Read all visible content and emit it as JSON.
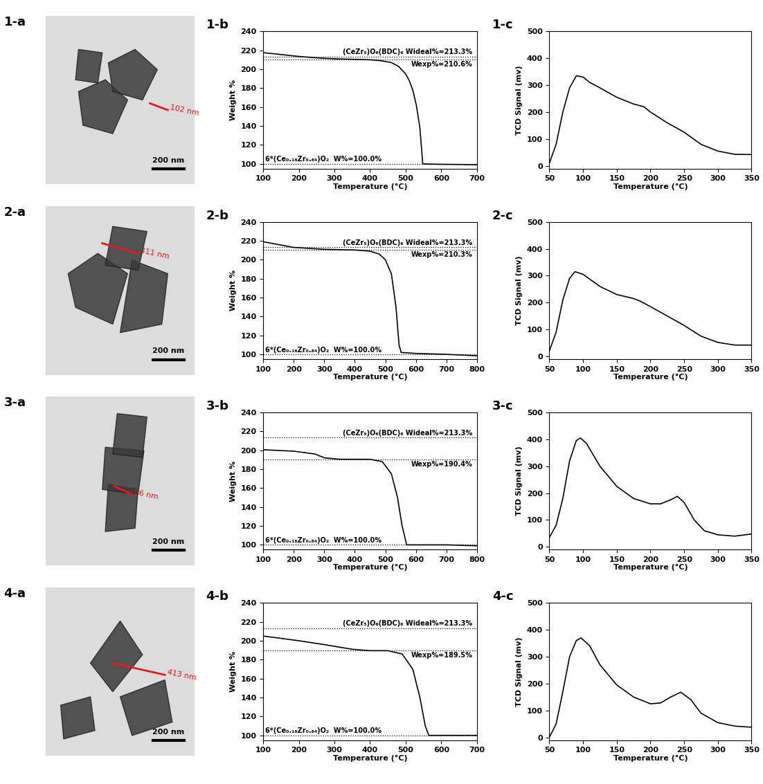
{
  "chart_data": [
    {
      "type": "image",
      "title": "1-a",
      "annotations": [
        "102 nm",
        "200 nm"
      ],
      "tick_labels": false,
      "color": "#e31a1c"
    },
    {
      "type": "line",
      "title": "1-b",
      "xlabel": "Temperature (°C)",
      "ylabel": "Weight %",
      "xlim": [
        100,
        700
      ],
      "xticks": [
        100,
        200,
        300,
        400,
        500,
        600,
        700
      ],
      "ylim": [
        95,
        240
      ],
      "yticks": [
        100,
        120,
        140,
        160,
        180,
        200,
        220,
        240
      ],
      "grid": false,
      "reference_lines": [
        {
          "value": 213.3,
          "label": "(CeZr₅)O₆(BDC)₆ Wideal%=213.3%"
        },
        {
          "value": 210.6,
          "label": "Wexp%=210.6%"
        },
        {
          "value": 100.0,
          "label": "6*(Ce₀.₁₆Zr₀.₈₄)O₂  W%=100.0%"
        }
      ],
      "series": [
        {
          "color": "#000000",
          "line_style": "solid",
          "x": [
            100,
            150,
            200,
            250,
            300,
            350,
            400,
            430,
            460,
            480,
            500,
            510,
            520,
            530,
            540,
            548,
            560,
            600,
            650,
            700
          ],
          "values": [
            217.5,
            215.5,
            213.5,
            212,
            211,
            210.5,
            210,
            209,
            207,
            203,
            195,
            188,
            178,
            162,
            138,
            100,
            99.8,
            99.5,
            99.3,
            99
          ]
        }
      ]
    },
    {
      "type": "line",
      "title": "1-c",
      "xlabel": "Temperature (°C)",
      "ylabel": "TCD Signal (mv)",
      "xlim": [
        50,
        350
      ],
      "xticks": [
        50,
        100,
        150,
        200,
        250,
        300,
        350
      ],
      "ylim": [
        -10,
        500
      ],
      "yticks": [
        0,
        100,
        200,
        300,
        400,
        500
      ],
      "grid": false,
      "series": [
        {
          "color": "#000000",
          "line_style": "solid",
          "x": [
            50,
            60,
            70,
            80,
            90,
            100,
            110,
            125,
            150,
            175,
            190,
            200,
            225,
            250,
            275,
            300,
            325,
            350
          ],
          "values": [
            10,
            80,
            200,
            290,
            335,
            330,
            310,
            290,
            255,
            230,
            220,
            200,
            160,
            125,
            80,
            55,
            43,
            42
          ]
        }
      ]
    },
    {
      "type": "image",
      "title": "2-a",
      "annotations": [
        "411 nm",
        "200 nm"
      ],
      "tick_labels": false,
      "color": "#e31a1c"
    },
    {
      "type": "line",
      "title": "2-b",
      "xlabel": "Temperature (°C)",
      "ylabel": "Weight %",
      "xlim": [
        100,
        800
      ],
      "xticks": [
        100,
        200,
        300,
        400,
        500,
        600,
        700,
        800
      ],
      "ylim": [
        95,
        240
      ],
      "yticks": [
        100,
        120,
        140,
        160,
        180,
        200,
        220,
        240
      ],
      "grid": false,
      "reference_lines": [
        {
          "value": 213.3,
          "label": "(CeZr₅)O₆(BDC)₆ Wideal%=213.3%"
        },
        {
          "value": 210.3,
          "label": "Wexp%=210.3%"
        },
        {
          "value": 100.0,
          "label": "6*(Ce₀.₁₆Zr₀.₈₄)O₂  W%=100.0%"
        }
      ],
      "series": [
        {
          "color": "#000000",
          "line_style": "solid",
          "x": [
            100,
            150,
            200,
            300,
            400,
            450,
            480,
            500,
            520,
            535,
            545,
            552,
            600,
            700,
            800
          ],
          "values": [
            219,
            216,
            213,
            211,
            210.3,
            209,
            206,
            200,
            185,
            150,
            110,
            102,
            101,
            100,
            98.5
          ]
        }
      ]
    },
    {
      "type": "line",
      "title": "2-c",
      "xlabel": "Temperature (°C)",
      "ylabel": "TCD Signal (mv)",
      "xlim": [
        50,
        350
      ],
      "xticks": [
        50,
        100,
        150,
        200,
        250,
        300,
        350
      ],
      "ylim": [
        -10,
        500
      ],
      "yticks": [
        0,
        100,
        200,
        300,
        400,
        500
      ],
      "grid": false,
      "series": [
        {
          "color": "#000000",
          "line_style": "solid",
          "x": [
            50,
            60,
            70,
            80,
            88,
            100,
            125,
            150,
            175,
            185,
            200,
            225,
            250,
            275,
            300,
            325,
            350
          ],
          "values": [
            20,
            90,
            210,
            290,
            315,
            305,
            260,
            230,
            215,
            205,
            185,
            150,
            115,
            75,
            52,
            42,
            42
          ]
        }
      ]
    },
    {
      "type": "image",
      "title": "3-a",
      "annotations": [
        "96 nm",
        "200 nm"
      ],
      "tick_labels": false,
      "color": "#e31a1c"
    },
    {
      "type": "line",
      "title": "3-b",
      "xlabel": "Temperature (°C)",
      "ylabel": "Weight %",
      "xlim": [
        100,
        800
      ],
      "xticks": [
        100,
        200,
        300,
        400,
        500,
        600,
        700,
        800
      ],
      "ylim": [
        95,
        240
      ],
      "yticks": [
        100,
        120,
        140,
        160,
        180,
        200,
        220,
        240
      ],
      "grid": false,
      "reference_lines": [
        {
          "value": 213.3,
          "label": "(CeZr₅)O₆(BDC)₆ Wideal%=213.3%"
        },
        {
          "value": 190.4,
          "label": "Wexp%=190.4%"
        },
        {
          "value": 100.0,
          "label": "6*(Ce₀.₁₆Zr₀.₈₄)O₂  W%=100.0%"
        }
      ],
      "series": [
        {
          "color": "#000000",
          "line_style": "solid",
          "x": [
            100,
            200,
            270,
            300,
            350,
            450,
            490,
            520,
            540,
            555,
            570,
            700,
            800
          ],
          "values": [
            200.5,
            199,
            196,
            192,
            190.5,
            190.4,
            188,
            175,
            150,
            120,
            100,
            100,
            99
          ]
        }
      ]
    },
    {
      "type": "line",
      "title": "3-c",
      "xlabel": "Temperature (°C)",
      "ylabel": "TCD Signal (mv)",
      "xlim": [
        50,
        350
      ],
      "xticks": [
        50,
        100,
        150,
        200,
        250,
        300,
        350
      ],
      "ylim": [
        -10,
        500
      ],
      "yticks": [
        0,
        100,
        200,
        300,
        400,
        500
      ],
      "grid": false,
      "series": [
        {
          "color": "#000000",
          "line_style": "solid",
          "x": [
            50,
            60,
            70,
            80,
            90,
            96,
            105,
            125,
            150,
            175,
            200,
            215,
            230,
            240,
            250,
            265,
            280,
            300,
            325,
            350
          ],
          "values": [
            35,
            80,
            180,
            320,
            395,
            405,
            385,
            300,
            225,
            180,
            160,
            160,
            175,
            188,
            165,
            100,
            60,
            45,
            40,
            48
          ]
        }
      ]
    },
    {
      "type": "image",
      "title": "4-a",
      "annotations": [
        "413 nm",
        "200 nm"
      ],
      "tick_labels": false,
      "color": "#e31a1c"
    },
    {
      "type": "line",
      "title": "4-b",
      "xlabel": "Temperature (°C)",
      "ylabel": "Weight %",
      "xlim": [
        100,
        700
      ],
      "xticks": [
        100,
        200,
        300,
        400,
        500,
        600,
        700
      ],
      "ylim": [
        95,
        240
      ],
      "yticks": [
        100,
        120,
        140,
        160,
        180,
        200,
        220,
        240
      ],
      "grid": false,
      "reference_lines": [
        {
          "value": 213.3,
          "label": "(CeZr₅)O₆(BDC)₆ Wideal%=213.3%"
        },
        {
          "value": 189.5,
          "label": "Wexp%=189.5%"
        },
        {
          "value": 100.0,
          "label": "6*(Ce₀.₁₆Zr₀.₈₄)O₂  W%=100.0%"
        }
      ],
      "series": [
        {
          "color": "#000000",
          "line_style": "solid",
          "x": [
            100,
            200,
            270,
            350,
            400,
            450,
            490,
            520,
            540,
            555,
            565,
            600,
            700
          ],
          "values": [
            205,
            200,
            196,
            191,
            189.5,
            189.5,
            186,
            170,
            140,
            110,
            100,
            100,
            100
          ]
        }
      ]
    },
    {
      "type": "line",
      "title": "4-c",
      "xlabel": "Temperature (°C)",
      "ylabel": "TCD Signal (mv)",
      "xlim": [
        50,
        350
      ],
      "xticks": [
        50,
        100,
        150,
        200,
        250,
        300,
        350
      ],
      "ylim": [
        -10,
        500
      ],
      "yticks": [
        0,
        100,
        200,
        300,
        400,
        500
      ],
      "grid": false,
      "series": [
        {
          "color": "#000000",
          "line_style": "solid",
          "x": [
            50,
            60,
            70,
            80,
            90,
            97,
            110,
            125,
            150,
            175,
            200,
            215,
            230,
            245,
            260,
            275,
            300,
            325,
            350
          ],
          "values": [
            0,
            50,
            170,
            300,
            360,
            370,
            340,
            270,
            195,
            150,
            125,
            128,
            150,
            168,
            140,
            90,
            55,
            42,
            38
          ]
        }
      ]
    }
  ]
}
